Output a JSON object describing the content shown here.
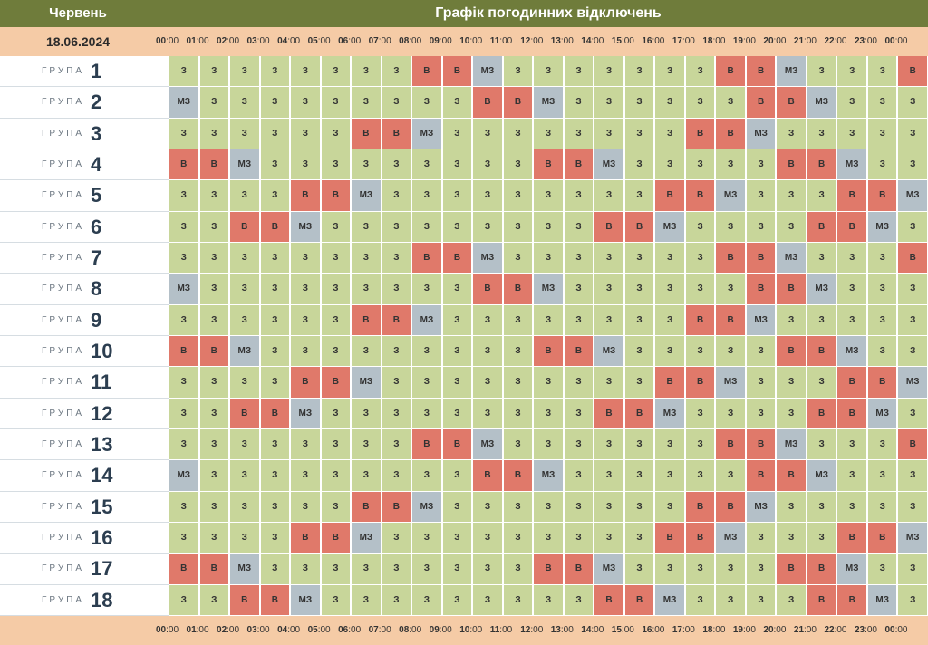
{
  "header": {
    "month": "Червень",
    "title": "Графік погодинних відключень"
  },
  "date": "18.06.2024",
  "hours": [
    {
      "h": "00",
      "m": ":00"
    },
    {
      "h": "01",
      "m": ":00"
    },
    {
      "h": "02",
      "m": ":00"
    },
    {
      "h": "03",
      "m": ":00"
    },
    {
      "h": "04",
      "m": ":00"
    },
    {
      "h": "05",
      "m": ":00"
    },
    {
      "h": "06",
      "m": ":00"
    },
    {
      "h": "07",
      "m": ":00"
    },
    {
      "h": "08",
      "m": ":00"
    },
    {
      "h": "09",
      "m": ":00"
    },
    {
      "h": "10",
      "m": ":00"
    },
    {
      "h": "11",
      "m": ":00"
    },
    {
      "h": "12",
      "m": ":00"
    },
    {
      "h": "13",
      "m": ":00"
    },
    {
      "h": "14",
      "m": ":00"
    },
    {
      "h": "15",
      "m": ":00"
    },
    {
      "h": "16",
      "m": ":00"
    },
    {
      "h": "17",
      "m": ":00"
    },
    {
      "h": "18",
      "m": ":00"
    },
    {
      "h": "19",
      "m": ":00"
    },
    {
      "h": "20",
      "m": ":00"
    },
    {
      "h": "21",
      "m": ":00"
    },
    {
      "h": "22",
      "m": ":00"
    },
    {
      "h": "23",
      "m": ":00"
    },
    {
      "h": "00",
      "m": ":00"
    }
  ],
  "group_word": "ГРУПА",
  "status_labels": {
    "z": "З",
    "v": "В",
    "mz": "МЗ"
  },
  "status_colors": {
    "z": "#c8d69a",
    "v": "#e0796a",
    "mz": "#b4c0c8"
  },
  "groups": [
    {
      "number": "1",
      "slots": [
        "З",
        "З",
        "З",
        "З",
        "З",
        "З",
        "З",
        "З",
        "В",
        "В",
        "МЗ",
        "З",
        "З",
        "З",
        "З",
        "З",
        "З",
        "З",
        "В",
        "В",
        "МЗ",
        "З",
        "З",
        "З",
        "В"
      ]
    },
    {
      "number": "2",
      "slots": [
        "МЗ",
        "З",
        "З",
        "З",
        "З",
        "З",
        "З",
        "З",
        "З",
        "З",
        "В",
        "В",
        "МЗ",
        "З",
        "З",
        "З",
        "З",
        "З",
        "З",
        "В",
        "В",
        "МЗ",
        "З",
        "З",
        "З"
      ]
    },
    {
      "number": "3",
      "slots": [
        "З",
        "З",
        "З",
        "З",
        "З",
        "З",
        "В",
        "В",
        "МЗ",
        "З",
        "З",
        "З",
        "З",
        "З",
        "З",
        "З",
        "З",
        "В",
        "В",
        "МЗ",
        "З",
        "З",
        "З",
        "З",
        "З"
      ]
    },
    {
      "number": "4",
      "slots": [
        "В",
        "В",
        "МЗ",
        "З",
        "З",
        "З",
        "З",
        "З",
        "З",
        "З",
        "З",
        "З",
        "В",
        "В",
        "МЗ",
        "З",
        "З",
        "З",
        "З",
        "З",
        "В",
        "В",
        "МЗ",
        "З",
        "З"
      ]
    },
    {
      "number": "5",
      "slots": [
        "З",
        "З",
        "З",
        "З",
        "В",
        "В",
        "МЗ",
        "З",
        "З",
        "З",
        "З",
        "З",
        "З",
        "З",
        "З",
        "З",
        "В",
        "В",
        "МЗ",
        "З",
        "З",
        "З",
        "В",
        "В",
        "МЗ"
      ]
    },
    {
      "number": "6",
      "slots": [
        "З",
        "З",
        "В",
        "В",
        "МЗ",
        "З",
        "З",
        "З",
        "З",
        "З",
        "З",
        "З",
        "З",
        "З",
        "В",
        "В",
        "МЗ",
        "З",
        "З",
        "З",
        "З",
        "В",
        "В",
        "МЗ",
        "З"
      ]
    },
    {
      "number": "7",
      "slots": [
        "З",
        "З",
        "З",
        "З",
        "З",
        "З",
        "З",
        "З",
        "В",
        "В",
        "МЗ",
        "З",
        "З",
        "З",
        "З",
        "З",
        "З",
        "З",
        "В",
        "В",
        "МЗ",
        "З",
        "З",
        "З",
        "В"
      ]
    },
    {
      "number": "8",
      "slots": [
        "МЗ",
        "З",
        "З",
        "З",
        "З",
        "З",
        "З",
        "З",
        "З",
        "З",
        "В",
        "В",
        "МЗ",
        "З",
        "З",
        "З",
        "З",
        "З",
        "З",
        "В",
        "В",
        "МЗ",
        "З",
        "З",
        "З"
      ]
    },
    {
      "number": "9",
      "slots": [
        "З",
        "З",
        "З",
        "З",
        "З",
        "З",
        "В",
        "В",
        "МЗ",
        "З",
        "З",
        "З",
        "З",
        "З",
        "З",
        "З",
        "З",
        "В",
        "В",
        "МЗ",
        "З",
        "З",
        "З",
        "З",
        "З"
      ]
    },
    {
      "number": "10",
      "slots": [
        "В",
        "В",
        "МЗ",
        "З",
        "З",
        "З",
        "З",
        "З",
        "З",
        "З",
        "З",
        "З",
        "В",
        "В",
        "МЗ",
        "З",
        "З",
        "З",
        "З",
        "З",
        "В",
        "В",
        "МЗ",
        "З",
        "З"
      ]
    },
    {
      "number": "11",
      "slots": [
        "З",
        "З",
        "З",
        "З",
        "В",
        "В",
        "МЗ",
        "З",
        "З",
        "З",
        "З",
        "З",
        "З",
        "З",
        "З",
        "З",
        "В",
        "В",
        "МЗ",
        "З",
        "З",
        "З",
        "В",
        "В",
        "МЗ"
      ]
    },
    {
      "number": "12",
      "slots": [
        "З",
        "З",
        "В",
        "В",
        "МЗ",
        "З",
        "З",
        "З",
        "З",
        "З",
        "З",
        "З",
        "З",
        "З",
        "В",
        "В",
        "МЗ",
        "З",
        "З",
        "З",
        "З",
        "В",
        "В",
        "МЗ",
        "З"
      ]
    },
    {
      "number": "13",
      "slots": [
        "З",
        "З",
        "З",
        "З",
        "З",
        "З",
        "З",
        "З",
        "В",
        "В",
        "МЗ",
        "З",
        "З",
        "З",
        "З",
        "З",
        "З",
        "З",
        "В",
        "В",
        "МЗ",
        "З",
        "З",
        "З",
        "В"
      ]
    },
    {
      "number": "14",
      "slots": [
        "МЗ",
        "З",
        "З",
        "З",
        "З",
        "З",
        "З",
        "З",
        "З",
        "З",
        "В",
        "В",
        "МЗ",
        "З",
        "З",
        "З",
        "З",
        "З",
        "З",
        "В",
        "В",
        "МЗ",
        "З",
        "З",
        "З"
      ]
    },
    {
      "number": "15",
      "slots": [
        "З",
        "З",
        "З",
        "З",
        "З",
        "З",
        "В",
        "В",
        "МЗ",
        "З",
        "З",
        "З",
        "З",
        "З",
        "З",
        "З",
        "З",
        "В",
        "В",
        "МЗ",
        "З",
        "З",
        "З",
        "З",
        "З"
      ]
    },
    {
      "number": "16",
      "slots": [
        "З",
        "З",
        "З",
        "З",
        "В",
        "В",
        "МЗ",
        "З",
        "З",
        "З",
        "З",
        "З",
        "З",
        "З",
        "З",
        "З",
        "В",
        "В",
        "МЗ",
        "З",
        "З",
        "З",
        "В",
        "В",
        "МЗ"
      ]
    },
    {
      "number": "17",
      "slots": [
        "В",
        "В",
        "МЗ",
        "З",
        "З",
        "З",
        "З",
        "З",
        "З",
        "З",
        "З",
        "З",
        "В",
        "В",
        "МЗ",
        "З",
        "З",
        "З",
        "З",
        "З",
        "В",
        "В",
        "МЗ",
        "З",
        "З"
      ]
    },
    {
      "number": "18",
      "slots": [
        "З",
        "З",
        "В",
        "В",
        "МЗ",
        "З",
        "З",
        "З",
        "З",
        "З",
        "З",
        "З",
        "З",
        "З",
        "В",
        "В",
        "МЗ",
        "З",
        "З",
        "З",
        "З",
        "В",
        "В",
        "МЗ",
        "З"
      ]
    }
  ]
}
